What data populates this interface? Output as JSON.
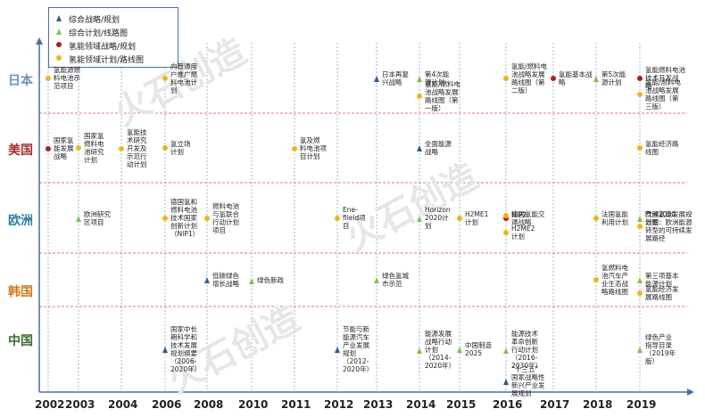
{
  "legend": [
    {
      "marker": "triangle-blue",
      "label": "综合战略/规划"
    },
    {
      "marker": "triangle-green",
      "label": "综合计划/线路图"
    },
    {
      "marker": "dot-red",
      "label": "氢能领域战略/规划"
    },
    {
      "marker": "dot-yellow",
      "label": "氢能领域计划/路线图"
    }
  ],
  "colors": {
    "triangle-blue": "#2f5d96",
    "triangle-green": "#7ec550",
    "dot-red": "#b51c1c",
    "dot-yellow": "#f2b418",
    "japan": "#6f8fc6",
    "usa": "#a83232",
    "europe": "#2f7fa3",
    "korea": "#d07a1c",
    "china": "#3e6b2e",
    "divider": "#d05050"
  },
  "countries": [
    {
      "id": "japan",
      "label": "日本"
    },
    {
      "id": "usa",
      "label": "美国"
    },
    {
      "id": "europe",
      "label": "欧洲"
    },
    {
      "id": "korea",
      "label": "韩国"
    },
    {
      "id": "china",
      "label": "中国"
    }
  ],
  "years": [
    "2002",
    "2003",
    "2004",
    "2006",
    "2008",
    "2010",
    "2011",
    "2012",
    "2013",
    "2014",
    "2015",
    "2016",
    "2017",
    "2018",
    "2019"
  ],
  "watermark": "火石创造",
  "events": [
    {
      "country": "japan",
      "year": "2002",
      "marker": "dot-yellow",
      "text": "氢能源燃\n料电池示\n范项目"
    },
    {
      "country": "japan",
      "year": "2006",
      "marker": "dot-yellow",
      "text": "向普通用\n户推广燃\n料电池计\n划"
    },
    {
      "country": "japan",
      "year": "2013",
      "marker": "triangle-blue",
      "text": "日本再复\n兴战略"
    },
    {
      "country": "japan",
      "year": "2014",
      "marker": "triangle-green",
      "text": "第4次能\n源计划"
    },
    {
      "country": "japan",
      "year": "2014",
      "marker": "dot-yellow",
      "text": "氢能/燃料电\n池战略发展\n路线图（第\n一版）"
    },
    {
      "country": "japan",
      "year": "2016",
      "marker": "dot-yellow",
      "text": "氢能/燃料电\n池战略发展\n路线图（第\n二版）"
    },
    {
      "country": "japan",
      "year": "2017",
      "marker": "dot-red",
      "text": "氢能基本战\n略"
    },
    {
      "country": "japan",
      "year": "2018",
      "marker": "triangle-green",
      "text": "第5次能\n源计划"
    },
    {
      "country": "japan",
      "year": "2019",
      "marker": "dot-red",
      "text": "氢能燃料电池\n技术开发战\n略"
    },
    {
      "country": "japan",
      "year": "2019",
      "marker": "dot-yellow",
      "text": "氢能/燃料电\n池战略发展\n路线图（第\n三版）"
    },
    {
      "country": "usa",
      "year": "2002",
      "marker": "dot-red",
      "text": "国家氢\n能发展\n战略"
    },
    {
      "country": "usa",
      "year": "2003",
      "marker": "dot-yellow",
      "text": "国家氢\n燃料电\n池研究\n计划"
    },
    {
      "country": "usa",
      "year": "2004",
      "marker": "dot-yellow",
      "text": "氢能技\n术研究\n开发及\n示范行\n动计划"
    },
    {
      "country": "usa",
      "year": "2006",
      "marker": "dot-yellow",
      "text": "氢立场\n计划"
    },
    {
      "country": "usa",
      "year": "2011",
      "marker": "dot-yellow",
      "text": "氢及燃\n料电池项\n目计划"
    },
    {
      "country": "usa",
      "year": "2014",
      "marker": "triangle-blue",
      "text": "全面能源\n战略"
    },
    {
      "country": "usa",
      "year": "2019",
      "marker": "dot-yellow",
      "text": "氢能经济路\n线图"
    },
    {
      "country": "europe",
      "year": "2003",
      "marker": "triangle-green",
      "text": "欧洲研究\n区项目"
    },
    {
      "country": "europe",
      "year": "2006",
      "marker": "dot-yellow",
      "text": "德国氢和\n燃料电池\n技术国家\n创新计划\n（NIP1）"
    },
    {
      "country": "europe",
      "year": "2008",
      "marker": "dot-yellow",
      "text": "燃料电池\n与氢联合\n行动计划\n项目"
    },
    {
      "country": "europe",
      "year": "2012",
      "marker": "dot-yellow",
      "text": "Ene-\nfileld项\n目"
    },
    {
      "country": "europe",
      "year": "2014",
      "marker": "triangle-green",
      "text": "Horizon\n2020计\n划"
    },
    {
      "country": "europe",
      "year": "2015",
      "marker": "dot-yellow",
      "text": "H2ME1\n计划"
    },
    {
      "country": "europe",
      "year": "2016",
      "marker": "dot-red",
      "text": "德国氢能交\n通战略"
    },
    {
      "country": "europe",
      "year": "2016",
      "marker": "dot-yellow",
      "text": "NIP2"
    },
    {
      "country": "europe",
      "year": "2016",
      "marker": "dot-yellow",
      "text": "H2ME2\n计划"
    },
    {
      "country": "europe",
      "year": "2018",
      "marker": "dot-yellow",
      "text": "法国氢能\n利用计划"
    },
    {
      "country": "europe",
      "year": "2019",
      "marker": "triangle-green",
      "text": "气候2030\n计划"
    },
    {
      "country": "europe",
      "year": "2019",
      "marker": "dot-yellow",
      "text": "欧洲氢能发展规\n划图：欧洲能源\n转型的可持续发\n展路径"
    },
    {
      "country": "korea",
      "year": "2008",
      "marker": "triangle-blue",
      "text": "低碳绿色\n增长战略"
    },
    {
      "country": "korea",
      "year": "2010",
      "marker": "triangle-green",
      "text": "绿色新政"
    },
    {
      "country": "korea",
      "year": "2013",
      "marker": "triangle-green",
      "text": "绿色氢城\n市示范"
    },
    {
      "country": "korea",
      "year": "2018",
      "marker": "dot-yellow",
      "text": "氢燃料电\n池汽车产\n业生态战\n略路线图"
    },
    {
      "country": "korea",
      "year": "2019",
      "marker": "triangle-green",
      "text": "第三项基本\n能源计划"
    },
    {
      "country": "korea",
      "year": "2019",
      "marker": "dot-yellow",
      "text": "氢能经济发\n展路线图"
    },
    {
      "country": "china",
      "year": "2006",
      "marker": "triangle-blue",
      "text": "国家中长\n期科学和\n技术发展\n规划纲要\n（2006-\n2020年）"
    },
    {
      "country": "china",
      "year": "2012",
      "marker": "triangle-blue",
      "text": "节能与新\n能源汽车\n产业发展\n规划\n（2012-\n2020年）"
    },
    {
      "country": "china",
      "year": "2014",
      "marker": "triangle-green",
      "text": "能源发展\n战略行动\n计划\n（2014-\n2020年）"
    },
    {
      "country": "china",
      "year": "2015",
      "marker": "triangle-green",
      "text": "中国制造\n2025"
    },
    {
      "country": "china",
      "year": "2016",
      "marker": "triangle-green",
      "text": "能源技术\n革命创新\n行动计划\n（2016-\n2030年）"
    },
    {
      "country": "china",
      "year": "2016",
      "marker": "triangle-blue",
      "text": "“十三五”\n国家战略性\n新兴产业发\n展规划"
    },
    {
      "country": "china",
      "year": "2019",
      "marker": "triangle-green",
      "text": "绿色产业\n指导目录\n（2019年\n版）"
    }
  ]
}
